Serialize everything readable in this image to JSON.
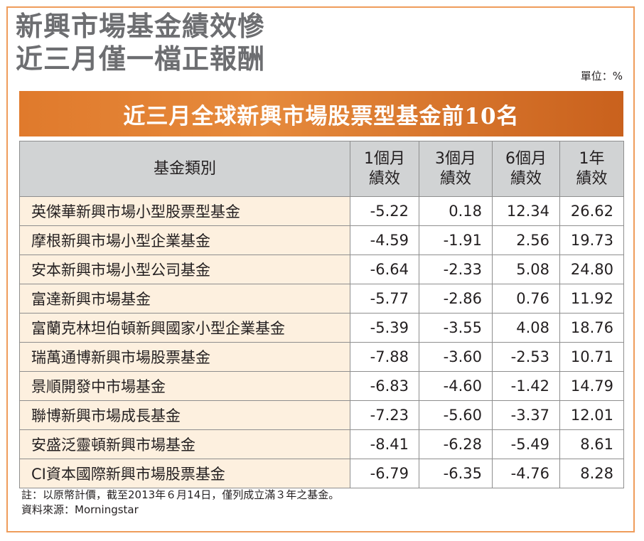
{
  "headline": {
    "line1": "新興市場基金績效慘",
    "line2": "近三月僅一檔正報酬"
  },
  "unit_label": "單位：%",
  "banner_title": "近三月全球新興市場股票型基金前10名",
  "table": {
    "headers": {
      "name": "基金類別",
      "m1_a": "1個月",
      "m1_b": "績效",
      "m3_a": "3個月",
      "m3_b": "績效",
      "m6_a": "6個月",
      "m6_b": "績效",
      "y1_a": "1年",
      "y1_b": "績效"
    },
    "rows": [
      {
        "name": "英傑華新興市場小型股票型基金",
        "m1": "-5.22",
        "m3": "0.18",
        "m6": "12.34",
        "y1": "26.62"
      },
      {
        "name": "摩根新興市場小型企業基金",
        "m1": "-4.59",
        "m3": "-1.91",
        "m6": "2.56",
        "y1": "19.73"
      },
      {
        "name": "安本新興市場小型公司基金",
        "m1": "-6.64",
        "m3": "-2.33",
        "m6": "5.08",
        "y1": "24.80"
      },
      {
        "name": "富達新興市場基金",
        "m1": "-5.77",
        "m3": "-2.86",
        "m6": "0.76",
        "y1": "11.92"
      },
      {
        "name": "富蘭克林坦伯頓新興國家小型企業基金",
        "m1": "-5.39",
        "m3": "-3.55",
        "m6": "4.08",
        "y1": "18.76"
      },
      {
        "name": "瑞萬通博新興市場股票基金",
        "m1": "-7.88",
        "m3": "-3.60",
        "m6": "-2.53",
        "y1": "10.71"
      },
      {
        "name": "景順開發中市場基金",
        "m1": "-6.83",
        "m3": "-4.60",
        "m6": "-1.42",
        "y1": "14.79"
      },
      {
        "name": "聯博新興市場成長基金",
        "m1": "-7.23",
        "m3": "-5.60",
        "m6": "-3.37",
        "y1": "12.01"
      },
      {
        "name": "安盛泛靈頓新興市場基金",
        "m1": "-8.41",
        "m3": "-6.28",
        "m6": "-5.49",
        "y1": "8.61"
      },
      {
        "name": "CI資本國際新興市場股票基金",
        "m1": "-6.79",
        "m3": "-6.35",
        "m6": "-4.76",
        "y1": "8.28"
      }
    ]
  },
  "notes": {
    "note": "註：以原幣計價，截至2013年６月14日，僅列成立滿３年之基金。",
    "source": "資料來源：Morningstar"
  },
  "colors": {
    "banner": "#e07a2c",
    "frame": "#ef9c5b",
    "header_bg": "#d1d3d4",
    "name_cell_bg": "#fdf0df",
    "headline_text": "#6d6e71"
  }
}
